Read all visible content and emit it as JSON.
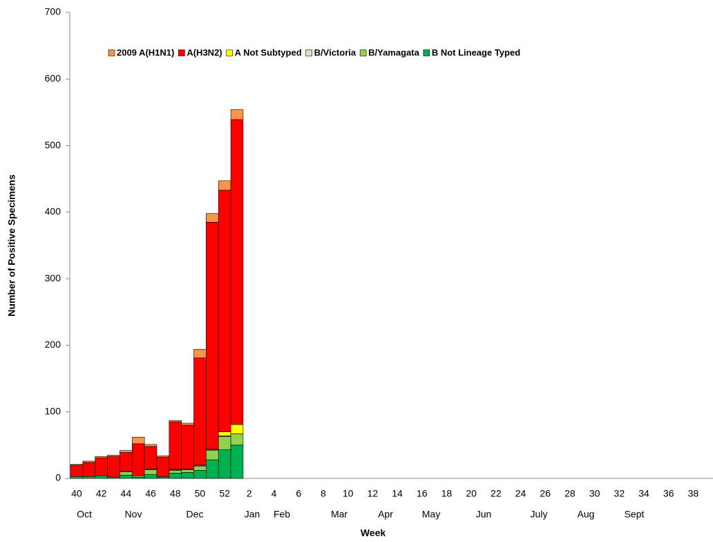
{
  "chart_data": {
    "type": "stacked-bar",
    "y_label": "Number of Positive Specimens",
    "x_label": "Week",
    "categories": [
      "40",
      null,
      "42",
      null,
      "44",
      null,
      "46",
      null,
      "48",
      null,
      "50",
      null,
      "52",
      null,
      "2",
      null,
      "4",
      null,
      "6",
      null,
      "8",
      null,
      "10",
      null,
      "12",
      null,
      "14",
      null,
      "16",
      null,
      "18",
      null,
      "20",
      null,
      "22",
      null,
      "24",
      null,
      "26",
      null,
      "28",
      null,
      "30",
      null,
      "32",
      null,
      "34",
      null,
      "36",
      null,
      "38",
      null
    ],
    "month_labels": [
      "Oct",
      "Nov",
      "Dec",
      "Jan",
      "Feb",
      "Mar",
      "Apr",
      "May",
      "Jun",
      "July",
      "Aug",
      "Sept"
    ],
    "series": [
      {
        "name": "2009 A(H1N1)",
        "color": "#f79646",
        "values": [
          1,
          2,
          2,
          2,
          3,
          10,
          3,
          2,
          2,
          3,
          13,
          13,
          14,
          15,
          null,
          null,
          null,
          null,
          null,
          null,
          null,
          null,
          null,
          null,
          null,
          null,
          null,
          null,
          null,
          null,
          null,
          null,
          null,
          null,
          null,
          null,
          null,
          null,
          null,
          null,
          null,
          null,
          null,
          null,
          null,
          null,
          null,
          null,
          null,
          null,
          null,
          null
        ]
      },
      {
        "name": "A(H3N2)",
        "color": "#ff0000",
        "values": [
          17,
          21,
          27,
          31,
          28,
          48,
          34,
          29,
          71,
          66,
          161,
          341,
          363,
          458,
          null,
          null,
          null,
          null,
          null,
          null,
          null,
          null,
          null,
          null,
          null,
          null,
          null,
          null,
          null,
          null,
          null,
          null,
          null,
          null,
          null,
          null,
          null,
          null,
          null,
          null,
          null,
          null,
          null,
          null,
          null,
          null,
          null,
          null,
          null,
          null,
          null,
          null
        ]
      },
      {
        "name": "A Not Subtyped",
        "color": "#ffff00",
        "values": [
          0,
          0,
          0,
          0,
          0,
          0,
          0,
          0,
          1,
          0,
          1,
          1,
          6,
          14,
          null,
          null,
          null,
          null,
          null,
          null,
          null,
          null,
          null,
          null,
          null,
          null,
          null,
          null,
          null,
          null,
          null,
          null,
          null,
          null,
          null,
          null,
          null,
          null,
          null,
          null,
          null,
          null,
          null,
          null,
          null,
          null,
          null,
          null,
          null,
          null,
          null,
          null
        ]
      },
      {
        "name": "B/Victoria",
        "color": "#d7e4bd",
        "values": [
          0,
          0,
          0,
          0,
          1,
          0,
          1,
          0,
          1,
          1,
          1,
          1,
          1,
          0,
          null,
          null,
          null,
          null,
          null,
          null,
          null,
          null,
          null,
          null,
          null,
          null,
          null,
          null,
          null,
          null,
          null,
          null,
          null,
          null,
          null,
          null,
          null,
          null,
          null,
          null,
          null,
          null,
          null,
          null,
          null,
          null,
          null,
          null,
          null,
          null,
          null,
          null
        ]
      },
      {
        "name": "B/Yamagata",
        "color": "#92d050",
        "values": [
          0,
          0,
          0,
          0,
          5,
          2,
          7,
          1,
          4,
          4,
          6,
          14,
          20,
          17,
          null,
          null,
          null,
          null,
          null,
          null,
          null,
          null,
          null,
          null,
          null,
          null,
          null,
          null,
          null,
          null,
          null,
          null,
          null,
          null,
          null,
          null,
          null,
          null,
          null,
          null,
          null,
          null,
          null,
          null,
          null,
          null,
          null,
          null,
          null,
          null,
          null,
          null
        ]
      },
      {
        "name": "B Not Lineage Typed",
        "color": "#00b050",
        "values": [
          3,
          3,
          4,
          2,
          5,
          2,
          6,
          2,
          8,
          9,
          12,
          28,
          43,
          50,
          null,
          null,
          null,
          null,
          null,
          null,
          null,
          null,
          null,
          null,
          null,
          null,
          null,
          null,
          null,
          null,
          null,
          null,
          null,
          null,
          null,
          null,
          null,
          null,
          null,
          null,
          null,
          null,
          null,
          null,
          null,
          null,
          null,
          null,
          null,
          null,
          null,
          null
        ]
      }
    ],
    "ylim": [
      0,
      700
    ],
    "yticks": [
      0,
      100,
      200,
      300,
      400,
      500,
      600,
      700
    ]
  }
}
